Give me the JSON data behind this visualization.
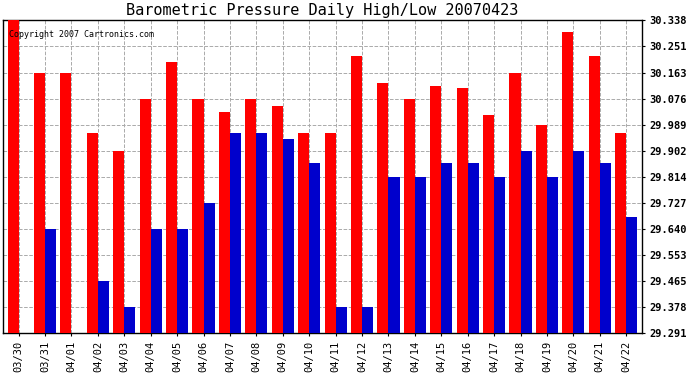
{
  "title": "Barometric Pressure Daily High/Low 20070423",
  "copyright": "Copyright 2007 Cartronics.com",
  "dates": [
    "03/30",
    "03/31",
    "04/01",
    "04/02",
    "04/03",
    "04/04",
    "04/05",
    "04/06",
    "04/07",
    "04/08",
    "04/09",
    "04/10",
    "04/11",
    "04/12",
    "04/13",
    "04/14",
    "04/15",
    "04/16",
    "04/17",
    "04/18",
    "04/19",
    "04/20",
    "04/21",
    "04/22"
  ],
  "highs": [
    30.338,
    30.163,
    30.163,
    29.96,
    29.902,
    30.076,
    30.2,
    30.076,
    30.03,
    30.076,
    30.05,
    29.96,
    29.96,
    30.22,
    30.13,
    30.076,
    30.12,
    30.113,
    30.02,
    30.163,
    29.989,
    30.3,
    30.22,
    29.96
  ],
  "lows": [
    29.291,
    29.64,
    29.291,
    29.465,
    29.378,
    29.64,
    29.64,
    29.727,
    29.96,
    29.96,
    29.94,
    29.86,
    29.378,
    29.378,
    29.814,
    29.814,
    29.86,
    29.86,
    29.814,
    29.902,
    29.814,
    29.902,
    29.86,
    29.68
  ],
  "high_color": "#ff0000",
  "low_color": "#0000cc",
  "background_color": "#ffffff",
  "grid_color": "#aaaaaa",
  "ymin": 29.291,
  "ymax": 30.338,
  "yticks": [
    29.291,
    29.378,
    29.465,
    29.553,
    29.64,
    29.727,
    29.814,
    29.902,
    29.989,
    30.076,
    30.163,
    30.251,
    30.338
  ],
  "title_fontsize": 11,
  "tick_fontsize": 7.5,
  "bar_width": 0.42
}
